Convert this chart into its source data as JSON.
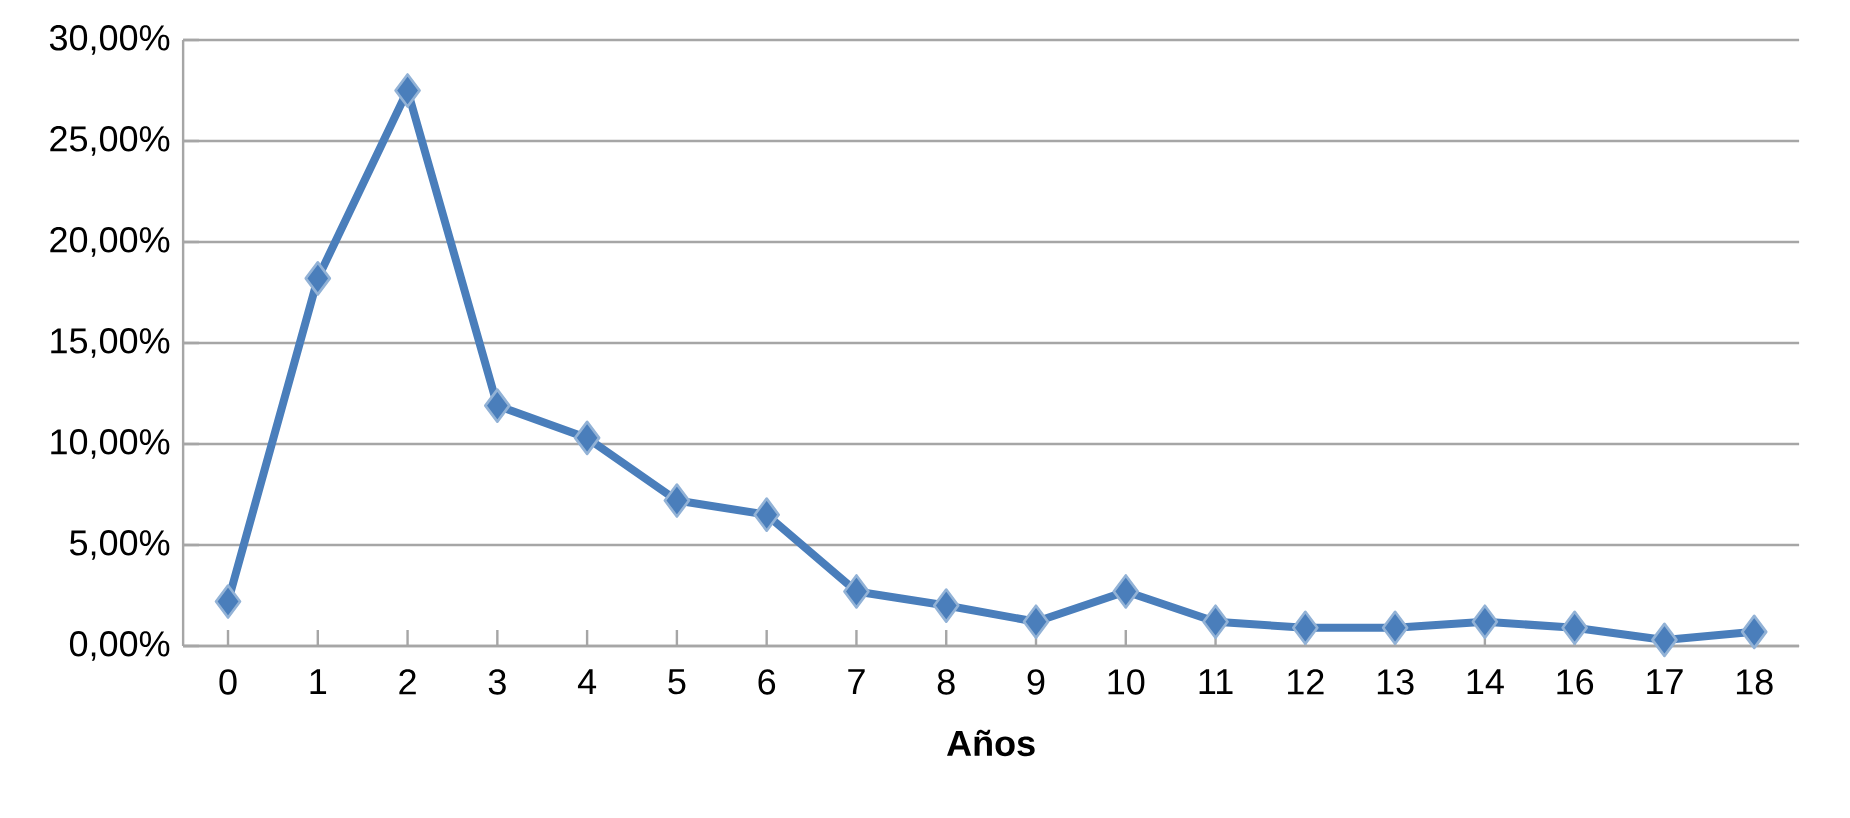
{
  "chart_data": {
    "type": "line",
    "xlabel": "Años",
    "categories": [
      "0",
      "1",
      "2",
      "3",
      "4",
      "5",
      "6",
      "7",
      "8",
      "9",
      "10",
      "11",
      "12",
      "13",
      "14",
      "16",
      "17",
      "18"
    ],
    "values": [
      2.2,
      18.2,
      27.5,
      11.9,
      10.3,
      7.2,
      6.5,
      2.7,
      2.0,
      1.2,
      2.7,
      1.2,
      0.9,
      0.9,
      1.2,
      0.9,
      0.3,
      0.7
    ],
    "color": "#4a7ebb",
    "marker": "diamond",
    "line_style": "solid",
    "grid": "y",
    "ylim": [
      0,
      30
    ],
    "yticks": [
      {
        "value": 0,
        "label": "0,00%"
      },
      {
        "value": 5,
        "label": "5,00%"
      },
      {
        "value": 10,
        "label": "10,00%"
      },
      {
        "value": 15,
        "label": "15,00%"
      },
      {
        "value": 20,
        "label": "20,00%"
      },
      {
        "value": 25,
        "label": "25,00%"
      },
      {
        "value": 30,
        "label": "30,00%"
      }
    ]
  }
}
